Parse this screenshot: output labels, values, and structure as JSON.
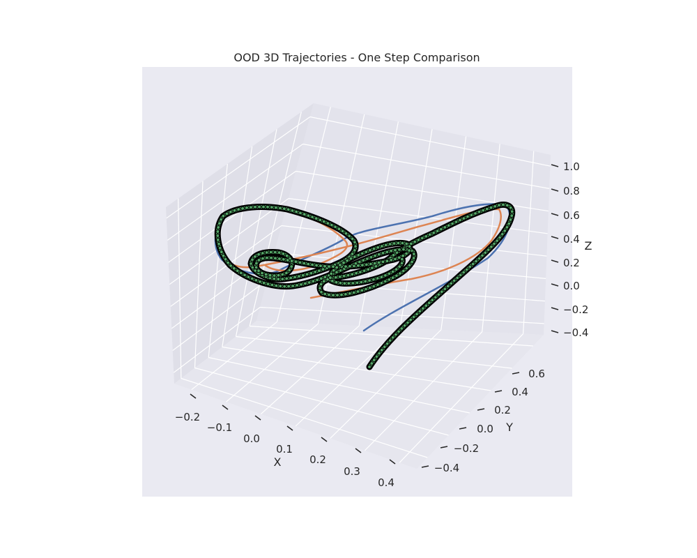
{
  "chart_data": {
    "type": "line",
    "projection": "3d",
    "title": "OOD 3D Trajectories - One Step Comparison",
    "xlabel": "X",
    "ylabel": "Y",
    "zlabel": "Z",
    "xticks": [
      "−0.2",
      "−0.1",
      "0.0",
      "0.1",
      "0.2",
      "0.3",
      "0.4"
    ],
    "yticks": [
      "−0.4",
      "−0.2",
      "0.0",
      "0.2",
      "0.4",
      "0.6"
    ],
    "zticks": [
      "−0.4",
      "−0.2",
      "0.0",
      "0.2",
      "0.4",
      "0.6",
      "0.8",
      "1.0"
    ],
    "xlim": [
      -0.25,
      0.42
    ],
    "ylim": [
      -0.5,
      0.72
    ],
    "zlim": [
      -0.45,
      1.0
    ],
    "grid": true,
    "background_color": "#eaeaf2",
    "series": [
      {
        "color": "#4c72b0",
        "style": "thin line"
      },
      {
        "color": "#dd8452",
        "style": "thin line"
      },
      {
        "color": "#55a868",
        "style": "thick line with black markers",
        "marker_color": "#000000"
      }
    ]
  }
}
